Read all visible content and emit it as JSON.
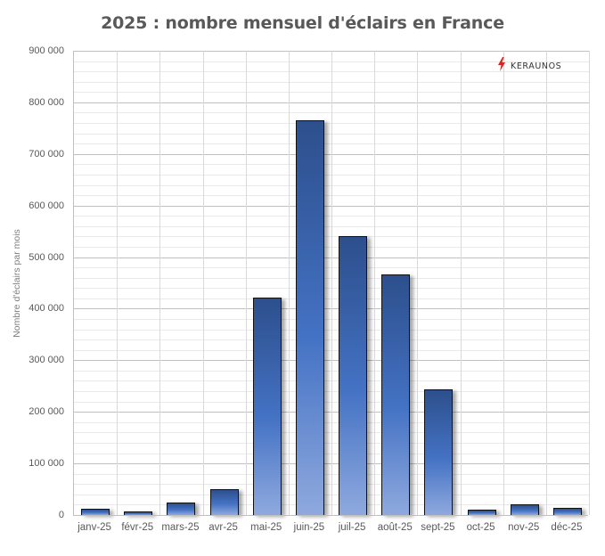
{
  "chart_data": {
    "type": "bar",
    "title": "2025 : nombre mensuel d'éclairs en France",
    "xlabel": "",
    "ylabel": "Nombre d'éclairs par mois",
    "categories": [
      "janv-25",
      "févr-25",
      "mars-25",
      "avr-25",
      "mai-25",
      "juin-25",
      "juil-25",
      "août-25",
      "sept-25",
      "oct-25",
      "nov-25",
      "déc-25"
    ],
    "values": [
      12000,
      7000,
      24000,
      50000,
      421000,
      765000,
      541000,
      466000,
      244000,
      10000,
      21000,
      14000
    ],
    "ylim": [
      0,
      900000
    ],
    "yticks": [
      0,
      100000,
      200000,
      300000,
      400000,
      500000,
      600000,
      700000,
      800000,
      900000
    ],
    "ytick_labels": [
      "0",
      "100 000",
      "200 000",
      "300 000",
      "400 000",
      "500 000",
      "600 000",
      "700 000",
      "800 000",
      "900 000"
    ],
    "grid": {
      "major": true,
      "minor_step": 20000,
      "vertical": true
    },
    "legend": "none",
    "bar_color": "#4472c4"
  },
  "logo": {
    "text": "KERAUNOS",
    "icon": "lightning-bolt-icon",
    "color": "#e02020"
  }
}
